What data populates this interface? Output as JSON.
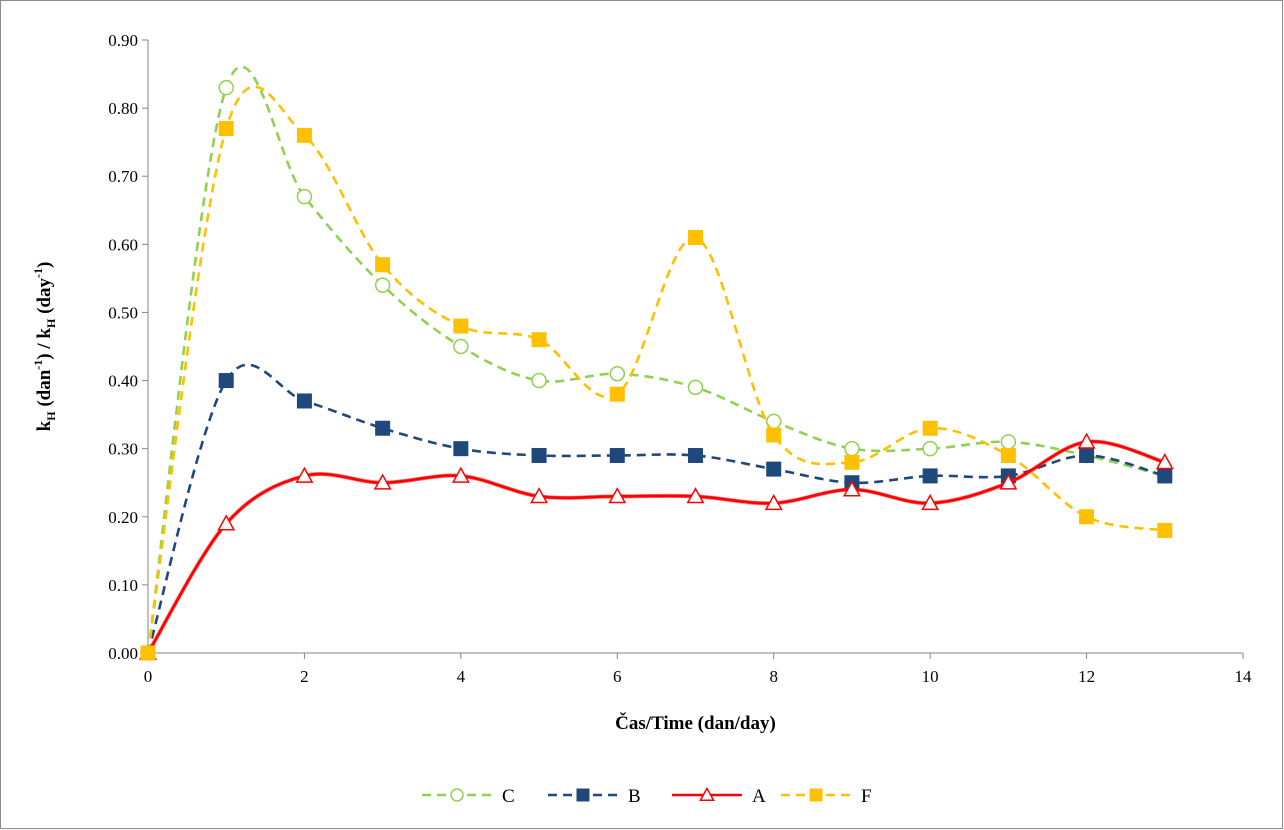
{
  "chart_data": {
    "type": "line",
    "xlabel": "Čas/Time (dan/day)",
    "ylabel": "kH (dan⁻¹) / kH (day⁻¹)",
    "ylabel_parts": {
      "k1": "k",
      "sub1": "H",
      "mid": " (dan",
      "sup1": "-1",
      "sep": ") / k",
      "sub2": "H",
      "mid2": " (day",
      "sup2": "-1",
      "end": ")"
    },
    "xlim": [
      0,
      14
    ],
    "ylim": [
      0,
      0.9
    ],
    "x_ticks": [
      "0",
      "2",
      "4",
      "6",
      "8",
      "10",
      "12",
      "14"
    ],
    "y_ticks": [
      "0.00",
      "0.10",
      "0.20",
      "0.30",
      "0.40",
      "0.50",
      "0.60",
      "0.70",
      "0.80",
      "0.90"
    ],
    "grid": false,
    "legend_position": "bottom",
    "series": [
      {
        "name": "C",
        "color": "#92d050",
        "dash": "dashed",
        "marker": "circle-open",
        "x": [
          0,
          1,
          2,
          3,
          4,
          5,
          6,
          7,
          8,
          9,
          10,
          11,
          12,
          13
        ],
        "y": [
          0.0,
          0.83,
          0.67,
          0.54,
          0.45,
          0.4,
          0.41,
          0.39,
          0.34,
          0.3,
          0.3,
          0.31,
          0.29,
          0.26
        ]
      },
      {
        "name": "B",
        "color": "#1f497d",
        "dash": "dashed",
        "marker": "square-filled",
        "x": [
          0,
          1,
          2,
          3,
          4,
          5,
          6,
          7,
          8,
          9,
          10,
          11,
          12,
          13
        ],
        "y": [
          0.0,
          0.4,
          0.37,
          0.33,
          0.3,
          0.29,
          0.29,
          0.29,
          0.27,
          0.25,
          0.26,
          0.26,
          0.29,
          0.26
        ]
      },
      {
        "name": "A",
        "color": "#ff0000",
        "dash": "solid",
        "marker": "triangle-open",
        "x": [
          0,
          1,
          2,
          3,
          4,
          5,
          6,
          7,
          8,
          9,
          10,
          11,
          12,
          13
        ],
        "y": [
          0.0,
          0.19,
          0.26,
          0.25,
          0.26,
          0.23,
          0.23,
          0.23,
          0.22,
          0.24,
          0.22,
          0.25,
          0.31,
          0.28
        ]
      },
      {
        "name": "F",
        "color": "#ffc000",
        "dash": "dashed",
        "marker": "square-filled",
        "x": [
          0,
          1,
          2,
          3,
          4,
          5,
          6,
          7,
          8,
          9,
          10,
          11,
          12,
          13
        ],
        "y": [
          0.0,
          0.77,
          0.76,
          0.57,
          0.48,
          0.46,
          0.38,
          0.61,
          0.32,
          0.28,
          0.33,
          0.29,
          0.2,
          0.18
        ]
      }
    ]
  }
}
